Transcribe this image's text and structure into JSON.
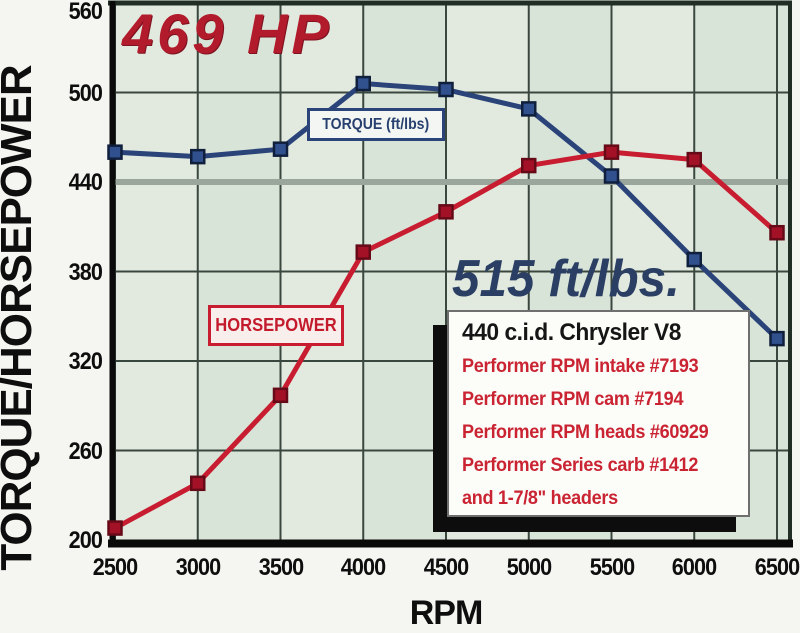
{
  "y_axis_title": "TORQUE/HORSEPOWER",
  "x_axis_title": "RPM",
  "annotations": {
    "hp_peak": "469 HP",
    "torque_peak": "515 ft/lbs."
  },
  "series_labels": {
    "torque": "TORQUE (ft/lbs)",
    "horsepower": "HORSEPOWER"
  },
  "info_box": {
    "title": "440 c.i.d. Chrysler V8",
    "lines": [
      "Performer RPM intake #7193",
      "Performer RPM cam #7194",
      "Performer RPM heads #60929",
      "Performer Series carb #1412",
      "and 1-7/8\" headers"
    ]
  },
  "colors": {
    "plot_bg": "#d9e4d8",
    "plot_stripe": "#e9efe6",
    "grid": "#3a473f",
    "grid_440_highlight": "#9aa59c",
    "border_dark": "#202e26",
    "border_black": "#0a0a0a",
    "torque_line": "#2a4379",
    "torque_marker_fill": "#30508e",
    "torque_marker_border": "#0f1f3c",
    "hp_line": "#c81d30",
    "hp_marker_fill": "#a31127",
    "hp_marker_border": "#660a18",
    "hp_headline_color": "#b21b2b",
    "torque_headline_color": "#2a3f63"
  },
  "chart_data": {
    "type": "line",
    "x": [
      2500,
      3000,
      3500,
      4000,
      4500,
      5000,
      5500,
      6000,
      6500
    ],
    "series": [
      {
        "name": "TORQUE (ft/lbs)",
        "values": [
          460,
          457,
          462,
          506,
          502,
          489,
          444,
          388,
          335
        ]
      },
      {
        "name": "HORSEPOWER",
        "values": [
          208,
          238,
          297,
          393,
          420,
          451,
          460,
          455,
          406
        ]
      }
    ],
    "xlabel": "RPM",
    "ylabel": "TORQUE/HORSEPOWER",
    "xlim": [
      2500,
      6500
    ],
    "ylim": [
      200,
      560
    ],
    "x_ticks": [
      2500,
      3000,
      3500,
      4000,
      4500,
      5000,
      5500,
      6000,
      6500
    ],
    "y_ticks": [
      200,
      260,
      320,
      380,
      440,
      500,
      560
    ],
    "grid": true,
    "legend_position": "on-chart-boxes",
    "annotations": [
      "469 HP peak horsepower",
      "515 ft/lbs. peak torque"
    ]
  }
}
